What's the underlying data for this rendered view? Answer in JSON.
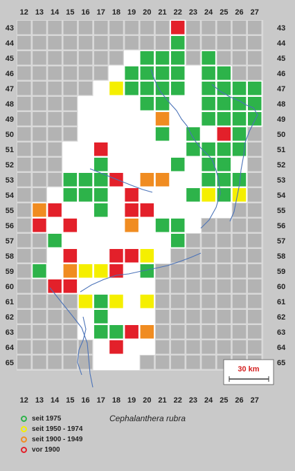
{
  "species_title": "Cephalanthera rubra",
  "colors": {
    "background": "#c9c9c9",
    "empty_cell": "#b3b3b3",
    "grid_line": "#d9d9d9",
    "region_fill": "#ffffff",
    "river": "#4a72b8",
    "seit_1975": "#2db34a",
    "seit_1950_1974": "#f5ef00",
    "seit_1900_1949": "#f08c21",
    "vor_1900": "#e3202a"
  },
  "columns": [
    "12",
    "13",
    "14",
    "15",
    "16",
    "17",
    "18",
    "19",
    "20",
    "21",
    "22",
    "23",
    "24",
    "25",
    "26",
    "27"
  ],
  "rows": [
    "43",
    "44",
    "45",
    "46",
    "47",
    "48",
    "49",
    "50",
    "51",
    "52",
    "53",
    "54",
    "55",
    "56",
    "57",
    "58",
    "59",
    "60",
    "61",
    "62",
    "63",
    "64",
    "65"
  ],
  "scale_bar": {
    "label": "30 km"
  },
  "legend": [
    {
      "key": "seit_1975",
      "label": "seit 1975"
    },
    {
      "key": "seit_1950_1974",
      "label": "seit 1950 - 1974"
    },
    {
      "key": "seit_1900_1949",
      "label": "seit 1900 - 1949"
    },
    {
      "key": "vor_1900",
      "label": "vor 1900"
    }
  ],
  "region_cells": {
    "43": [
      "22"
    ],
    "44": [
      "22"
    ],
    "45": [
      "19",
      "20",
      "21",
      "22",
      "24"
    ],
    "46": [
      "18",
      "19",
      "20",
      "21",
      "22",
      "23",
      "24",
      "25"
    ],
    "47": [
      "17",
      "18",
      "19",
      "20",
      "21",
      "22",
      "23",
      "24",
      "25",
      "26",
      "27"
    ],
    "48": [
      "16",
      "17",
      "18",
      "19",
      "20",
      "21",
      "22",
      "23",
      "24",
      "25",
      "26",
      "27"
    ],
    "49": [
      "16",
      "17",
      "18",
      "19",
      "20",
      "21",
      "22",
      "23",
      "24",
      "25",
      "26",
      "27"
    ],
    "50": [
      "16",
      "17",
      "18",
      "19",
      "20",
      "21",
      "22",
      "23",
      "24",
      "25",
      "26"
    ],
    "51": [
      "15",
      "16",
      "17",
      "18",
      "19",
      "20",
      "21",
      "22",
      "23",
      "24",
      "25",
      "26"
    ],
    "52": [
      "15",
      "16",
      "17",
      "18",
      "19",
      "20",
      "21",
      "22",
      "23",
      "24",
      "25",
      "26"
    ],
    "53": [
      "15",
      "16",
      "17",
      "18",
      "19",
      "20",
      "21",
      "22",
      "23",
      "24",
      "25",
      "26"
    ],
    "54": [
      "14",
      "15",
      "16",
      "17",
      "18",
      "19",
      "20",
      "21",
      "22",
      "23",
      "24",
      "25",
      "26"
    ],
    "55": [
      "13",
      "14",
      "15",
      "16",
      "17",
      "18",
      "19",
      "20",
      "21",
      "22",
      "23",
      "24",
      "25"
    ],
    "56": [
      "13",
      "14",
      "15",
      "16",
      "17",
      "18",
      "19",
      "20",
      "21",
      "22",
      "23"
    ],
    "57": [
      "14",
      "15",
      "16",
      "17",
      "18",
      "19",
      "20",
      "21",
      "22"
    ],
    "58": [
      "14",
      "15",
      "16",
      "17",
      "18",
      "19",
      "20",
      "21"
    ],
    "59": [
      "13",
      "14",
      "15",
      "16",
      "17",
      "18",
      "19",
      "20"
    ],
    "60": [
      "14",
      "15",
      "16",
      "17",
      "18",
      "19",
      "20"
    ],
    "61": [
      "16",
      "17",
      "18",
      "19",
      "20"
    ],
    "62": [
      "16",
      "17",
      "18",
      "19",
      "20"
    ],
    "63": [
      "16",
      "17",
      "18",
      "19",
      "20"
    ],
    "64": [
      "17",
      "18",
      "19",
      "20"
    ],
    "65": [
      "17",
      "18",
      "19"
    ]
  },
  "records": [
    {
      "col": "22",
      "row": "43",
      "status": "vor_1900"
    },
    {
      "col": "22",
      "row": "44",
      "status": "seit_1975"
    },
    {
      "col": "20",
      "row": "45",
      "status": "seit_1975"
    },
    {
      "col": "21",
      "row": "45",
      "status": "seit_1975"
    },
    {
      "col": "22",
      "row": "45",
      "status": "seit_1975"
    },
    {
      "col": "24",
      "row": "45",
      "status": "seit_1975"
    },
    {
      "col": "19",
      "row": "46",
      "status": "seit_1975"
    },
    {
      "col": "20",
      "row": "46",
      "status": "seit_1975"
    },
    {
      "col": "21",
      "row": "46",
      "status": "seit_1975"
    },
    {
      "col": "22",
      "row": "46",
      "status": "seit_1975"
    },
    {
      "col": "24",
      "row": "46",
      "status": "seit_1975"
    },
    {
      "col": "25",
      "row": "46",
      "status": "seit_1975"
    },
    {
      "col": "18",
      "row": "47",
      "status": "seit_1950_1974"
    },
    {
      "col": "19",
      "row": "47",
      "status": "seit_1975"
    },
    {
      "col": "20",
      "row": "47",
      "status": "seit_1975"
    },
    {
      "col": "21",
      "row": "47",
      "status": "seit_1975"
    },
    {
      "col": "22",
      "row": "47",
      "status": "seit_1975"
    },
    {
      "col": "24",
      "row": "47",
      "status": "seit_1975"
    },
    {
      "col": "25",
      "row": "47",
      "status": "seit_1975"
    },
    {
      "col": "26",
      "row": "47",
      "status": "seit_1975"
    },
    {
      "col": "27",
      "row": "47",
      "status": "seit_1975"
    },
    {
      "col": "20",
      "row": "48",
      "status": "seit_1975"
    },
    {
      "col": "21",
      "row": "48",
      "status": "seit_1975"
    },
    {
      "col": "24",
      "row": "48",
      "status": "seit_1975"
    },
    {
      "col": "25",
      "row": "48",
      "status": "seit_1975"
    },
    {
      "col": "26",
      "row": "48",
      "status": "seit_1975"
    },
    {
      "col": "27",
      "row": "48",
      "status": "seit_1975"
    },
    {
      "col": "21",
      "row": "49",
      "status": "seit_1900_1949"
    },
    {
      "col": "24",
      "row": "49",
      "status": "seit_1975"
    },
    {
      "col": "25",
      "row": "49",
      "status": "seit_1975"
    },
    {
      "col": "26",
      "row": "49",
      "status": "seit_1975"
    },
    {
      "col": "27",
      "row": "49",
      "status": "seit_1975"
    },
    {
      "col": "21",
      "row": "50",
      "status": "seit_1975"
    },
    {
      "col": "23",
      "row": "50",
      "status": "seit_1975"
    },
    {
      "col": "25",
      "row": "50",
      "status": "vor_1900"
    },
    {
      "col": "26",
      "row": "50",
      "status": "seit_1975"
    },
    {
      "col": "17",
      "row": "51",
      "status": "vor_1900"
    },
    {
      "col": "23",
      "row": "51",
      "status": "seit_1975"
    },
    {
      "col": "24",
      "row": "51",
      "status": "seit_1975"
    },
    {
      "col": "25",
      "row": "51",
      "status": "seit_1975"
    },
    {
      "col": "26",
      "row": "51",
      "status": "seit_1975"
    },
    {
      "col": "17",
      "row": "52",
      "status": "seit_1975"
    },
    {
      "col": "22",
      "row": "52",
      "status": "seit_1975"
    },
    {
      "col": "24",
      "row": "52",
      "status": "seit_1975"
    },
    {
      "col": "25",
      "row": "52",
      "status": "seit_1975"
    },
    {
      "col": "15",
      "row": "53",
      "status": "seit_1975"
    },
    {
      "col": "16",
      "row": "53",
      "status": "seit_1975"
    },
    {
      "col": "17",
      "row": "53",
      "status": "seit_1975"
    },
    {
      "col": "18",
      "row": "53",
      "status": "vor_1900"
    },
    {
      "col": "20",
      "row": "53",
      "status": "seit_1900_1949"
    },
    {
      "col": "21",
      "row": "53",
      "status": "seit_1900_1949"
    },
    {
      "col": "24",
      "row": "53",
      "status": "seit_1975"
    },
    {
      "col": "25",
      "row": "53",
      "status": "seit_1975"
    },
    {
      "col": "26",
      "row": "53",
      "status": "seit_1975"
    },
    {
      "col": "15",
      "row": "54",
      "status": "seit_1975"
    },
    {
      "col": "16",
      "row": "54",
      "status": "seit_1975"
    },
    {
      "col": "17",
      "row": "54",
      "status": "seit_1975"
    },
    {
      "col": "19",
      "row": "54",
      "status": "vor_1900"
    },
    {
      "col": "23",
      "row": "54",
      "status": "seit_1975"
    },
    {
      "col": "24",
      "row": "54",
      "status": "seit_1950_1974"
    },
    {
      "col": "25",
      "row": "54",
      "status": "seit_1975"
    },
    {
      "col": "26",
      "row": "54",
      "status": "seit_1950_1974"
    },
    {
      "col": "13",
      "row": "55",
      "status": "seit_1900_1949"
    },
    {
      "col": "14",
      "row": "55",
      "status": "vor_1900"
    },
    {
      "col": "17",
      "row": "55",
      "status": "seit_1975"
    },
    {
      "col": "19",
      "row": "55",
      "status": "vor_1900"
    },
    {
      "col": "20",
      "row": "55",
      "status": "vor_1900"
    },
    {
      "col": "13",
      "row": "56",
      "status": "vor_1900"
    },
    {
      "col": "15",
      "row": "56",
      "status": "vor_1900"
    },
    {
      "col": "19",
      "row": "56",
      "status": "seit_1900_1949"
    },
    {
      "col": "21",
      "row": "56",
      "status": "seit_1975"
    },
    {
      "col": "22",
      "row": "56",
      "status": "seit_1975"
    },
    {
      "col": "14",
      "row": "57",
      "status": "seit_1975"
    },
    {
      "col": "22",
      "row": "57",
      "status": "seit_1975"
    },
    {
      "col": "15",
      "row": "58",
      "status": "vor_1900"
    },
    {
      "col": "18",
      "row": "58",
      "status": "vor_1900"
    },
    {
      "col": "19",
      "row": "58",
      "status": "vor_1900"
    },
    {
      "col": "20",
      "row": "58",
      "status": "seit_1950_1974"
    },
    {
      "col": "13",
      "row": "59",
      "status": "seit_1975"
    },
    {
      "col": "15",
      "row": "59",
      "status": "seit_1900_1949"
    },
    {
      "col": "16",
      "row": "59",
      "status": "seit_1950_1974"
    },
    {
      "col": "17",
      "row": "59",
      "status": "seit_1950_1974"
    },
    {
      "col": "18",
      "row": "59",
      "status": "vor_1900"
    },
    {
      "col": "20",
      "row": "59",
      "status": "seit_1975"
    },
    {
      "col": "14",
      "row": "60",
      "status": "vor_1900"
    },
    {
      "col": "15",
      "row": "60",
      "status": "vor_1900"
    },
    {
      "col": "16",
      "row": "61",
      "status": "seit_1950_1974"
    },
    {
      "col": "17",
      "row": "61",
      "status": "seit_1975"
    },
    {
      "col": "18",
      "row": "61",
      "status": "seit_1950_1974"
    },
    {
      "col": "20",
      "row": "61",
      "status": "seit_1950_1974"
    },
    {
      "col": "17",
      "row": "62",
      "status": "seit_1975"
    },
    {
      "col": "17",
      "row": "63",
      "status": "seit_1975"
    },
    {
      "col": "18",
      "row": "63",
      "status": "seit_1975"
    },
    {
      "col": "19",
      "row": "63",
      "status": "vor_1900"
    },
    {
      "col": "20",
      "row": "63",
      "status": "seit_1900_1949"
    },
    {
      "col": "18",
      "row": "64",
      "status": "vor_1900"
    }
  ]
}
